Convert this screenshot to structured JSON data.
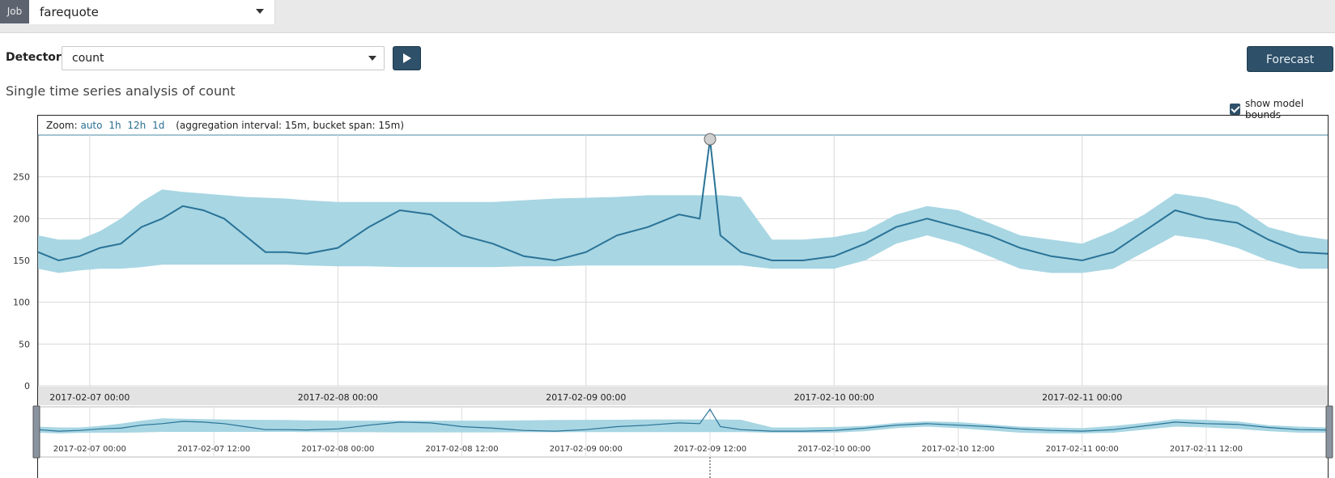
{
  "job": {
    "label": "Job",
    "value": "farequote"
  },
  "detector": {
    "label": "Detector:",
    "value": "count"
  },
  "forecast_label": "Forecast",
  "title": "Single time series analysis of count",
  "show_model_bounds_label": "show model bounds",
  "zoom": {
    "label": "Zoom:",
    "options": [
      "auto",
      "1h",
      "12h",
      "1d"
    ],
    "info": "(aggregation interval: 15m, bucket span: 15m)"
  },
  "colors": {
    "line": "#2a7397",
    "band": "#a8d6e3",
    "button": "#2e5069",
    "anomaly_marker": "#cfcfcf"
  },
  "chart_data": {
    "type": "line",
    "x_range": [
      "2017-02-06 19:00",
      "2017-02-11 23:45"
    ],
    "ylim": [
      0,
      300
    ],
    "y_ticks": [
      0,
      50,
      100,
      150,
      200,
      250
    ],
    "x_tick_labels": [
      "2017-02-07 00:00",
      "2017-02-08 00:00",
      "2017-02-09 00:00",
      "2017-02-10 00:00",
      "2017-02-11 00:00"
    ],
    "context_tick_labels": [
      "2017-02-07 00:00",
      "2017-02-07 12:00",
      "2017-02-08 00:00",
      "2017-02-08 12:00",
      "2017-02-09 00:00",
      "2017-02-09 12:00",
      "2017-02-10 00:00",
      "2017-02-10 12:00",
      "2017-02-11 00:00",
      "2017-02-11 12:00"
    ],
    "grid": true,
    "series": [
      {
        "x": [
          "2017-02-06 19:00",
          "2017-02-06 21:00",
          "2017-02-06 23:00",
          "2017-02-07 01:00",
          "2017-02-07 03:00",
          "2017-02-07 05:00",
          "2017-02-07 07:00",
          "2017-02-07 09:00",
          "2017-02-07 11:00",
          "2017-02-07 13:00",
          "2017-02-07 15:00",
          "2017-02-07 17:00",
          "2017-02-07 19:00",
          "2017-02-07 21:00",
          "2017-02-08 00:00",
          "2017-02-08 03:00",
          "2017-02-08 06:00",
          "2017-02-08 09:00",
          "2017-02-08 12:00",
          "2017-02-08 15:00",
          "2017-02-08 18:00",
          "2017-02-08 21:00",
          "2017-02-09 00:00",
          "2017-02-09 03:00",
          "2017-02-09 06:00",
          "2017-02-09 09:00",
          "2017-02-09 11:00",
          "2017-02-09 12:00",
          "2017-02-09 13:00",
          "2017-02-09 15:00",
          "2017-02-09 18:00",
          "2017-02-09 21:00",
          "2017-02-10 00:00",
          "2017-02-10 03:00",
          "2017-02-10 06:00",
          "2017-02-10 09:00",
          "2017-02-10 12:00",
          "2017-02-10 15:00",
          "2017-02-10 18:00",
          "2017-02-10 21:00",
          "2017-02-11 00:00",
          "2017-02-11 03:00",
          "2017-02-11 06:00",
          "2017-02-11 09:00",
          "2017-02-11 12:00",
          "2017-02-11 15:00",
          "2017-02-11 18:00",
          "2017-02-11 21:00",
          "2017-02-11 23:45"
        ],
        "values": [
          160,
          150,
          155,
          165,
          170,
          190,
          200,
          215,
          210,
          200,
          180,
          160,
          160,
          158,
          165,
          190,
          210,
          205,
          180,
          170,
          155,
          150,
          160,
          180,
          190,
          205,
          200,
          295,
          180,
          160,
          150,
          150,
          155,
          170,
          190,
          200,
          190,
          180,
          165,
          155,
          150,
          160,
          185,
          210,
          200,
          195,
          175,
          160,
          158
        ]
      }
    ],
    "model_bounds": {
      "upper": [
        180,
        175,
        175,
        185,
        200,
        220,
        235,
        232,
        230,
        228,
        226,
        225,
        224,
        222,
        220,
        220,
        220,
        220,
        220,
        220,
        222,
        224,
        225,
        226,
        228,
        228,
        228,
        228,
        228,
        226,
        175,
        175,
        178,
        185,
        205,
        215,
        210,
        195,
        180,
        175,
        170,
        185,
        205,
        230,
        225,
        215,
        190,
        180,
        175
      ],
      "lower": [
        140,
        135,
        138,
        140,
        140,
        142,
        145,
        145,
        145,
        145,
        145,
        145,
        145,
        144,
        143,
        143,
        142,
        142,
        142,
        142,
        143,
        143,
        144,
        144,
        144,
        144,
        144,
        144,
        144,
        144,
        140,
        140,
        140,
        150,
        170,
        180,
        170,
        155,
        140,
        135,
        135,
        140,
        160,
        180,
        175,
        165,
        150,
        140,
        140
      ]
    },
    "anomaly": {
      "x": "2017-02-09 12:00",
      "y": 295
    }
  }
}
